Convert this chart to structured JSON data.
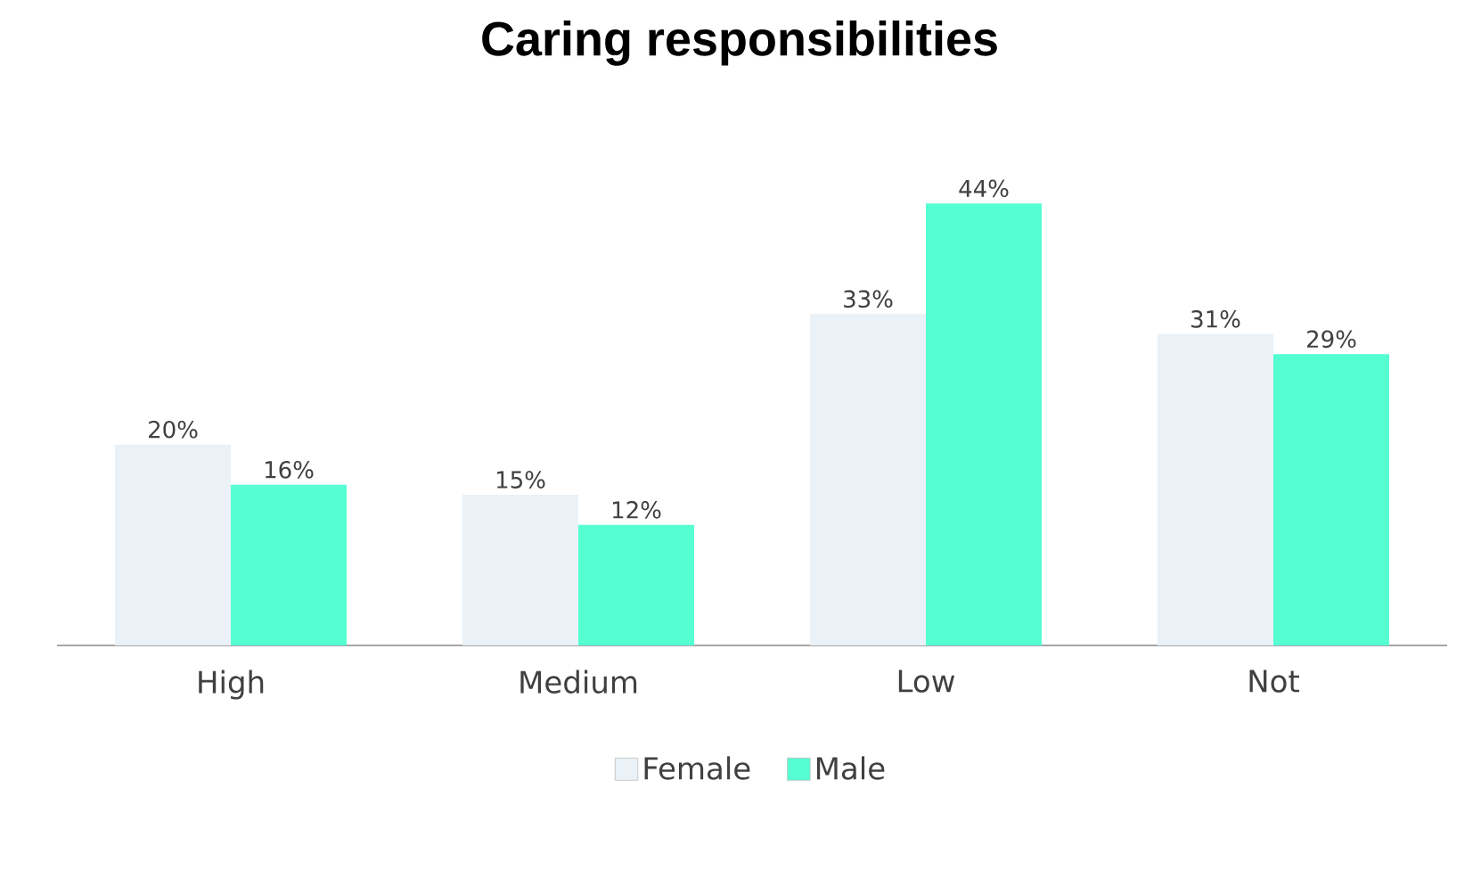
{
  "chart_data": {
    "type": "bar",
    "title": "Caring responsibilities",
    "categories": [
      "High",
      "Medium",
      "Low",
      "Not"
    ],
    "series": [
      {
        "name": "Female",
        "color": "#eaf2f8",
        "values": [
          20,
          15,
          33,
          31
        ],
        "value_labels": [
          "20%",
          "15%",
          "33%",
          "31%"
        ]
      },
      {
        "name": "Male",
        "color": "#55ffd2",
        "values": [
          16,
          12,
          44,
          29
        ],
        "value_labels": [
          "16%",
          "12%",
          "44%",
          "29%"
        ]
      }
    ],
    "legend": "bottom"
  }
}
